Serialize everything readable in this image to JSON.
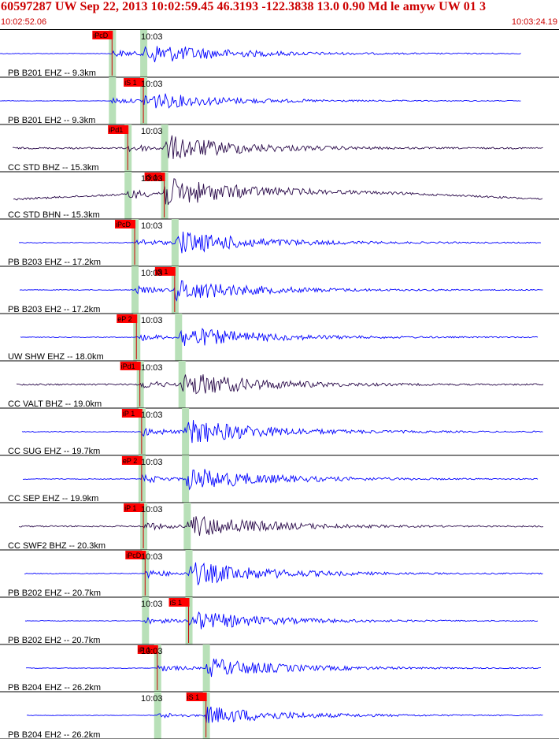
{
  "header": {
    "title": "60597287 UW Sep 22, 2013 10:02:59.45    46.3193 -122.3838 13.0 0.90 Md le amyw UW 01    3",
    "start_time": "10:02:52.06",
    "end_time": "10:03:24.19"
  },
  "colors": {
    "header_text": "#cc0000",
    "trace_blue": "#0000ff",
    "trace_dark": "#2a0a4a",
    "pick_box": "#ff0000",
    "pick_line": "#cc0000",
    "window_band": "#b8e0b8",
    "separator": "#000000"
  },
  "chart_data": {
    "type": "line",
    "title": "60597287 UW Sep 22, 2013 10:02:59.45 46.3193 -122.3838 13.0 0.90 Md le amyw UW 01 3",
    "xlabel": "",
    "ylabel": "",
    "x_unit": "time",
    "xlim": [
      "10:02:52.06",
      "10:03:24.19"
    ],
    "grid": false,
    "series": [
      {
        "name": "PB B201 EHZ -- 9.3km",
        "minute_label": "10:03",
        "color": "blue",
        "pick": "iPcD",
        "p_time": "10:02:58.5",
        "s_time": "10:03:00.3",
        "pick_at": "p",
        "amp": 0.55
      },
      {
        "name": "PB B201 EH2 -- 9.3km",
        "minute_label": "10:03",
        "color": "blue",
        "pick": "iS 1",
        "p_time": "10:02:58.5",
        "s_time": "10:03:00.3",
        "pick_at": "s",
        "amp": 0.45
      },
      {
        "name": "CC STD BHZ -- 15.3km",
        "minute_label": "10:03",
        "color": "dark",
        "pick": "iPd1",
        "p_time": "10:02:59.4",
        "s_time": "10:03:01.5",
        "pick_at": "p",
        "amp": 0.65
      },
      {
        "name": "CC STD BHN -- 15.3km",
        "minute_label": "10:03",
        "color": "dark",
        "pick": "iS 1",
        "p_time": "10:02:59.4",
        "s_time": "10:03:01.5",
        "pick_at": "s",
        "amp": 0.75
      },
      {
        "name": "PB B203 EHZ -- 17.2km",
        "minute_label": "10:03",
        "color": "blue",
        "pick": "iPcD",
        "p_time": "10:02:59.8",
        "s_time": "10:03:02.1",
        "pick_at": "p",
        "amp": 0.6
      },
      {
        "name": "PB B203 EH2 -- 17.2km",
        "minute_label": "10:03",
        "color": "blue",
        "pick": "iS 1",
        "p_time": "10:02:59.8",
        "s_time": "10:03:02.1",
        "pick_at": "s",
        "amp": 0.55
      },
      {
        "name": "UW SHW EHZ -- 18.0km",
        "minute_label": "10:03",
        "color": "blue",
        "pick": "eP 2",
        "p_time": "10:02:59.9",
        "s_time": "10:03:02.3",
        "pick_at": "p",
        "amp": 0.55
      },
      {
        "name": "CC VALT BHZ -- 19.0km",
        "minute_label": "10:03",
        "color": "dark",
        "pick": "iPd1",
        "p_time": "10:03:00.1",
        "s_time": "10:03:02.5",
        "pick_at": "p",
        "amp": 0.65
      },
      {
        "name": "CC SUG EHZ -- 19.7km",
        "minute_label": "10:03",
        "color": "blue",
        "pick": "iP 1",
        "p_time": "10:03:00.2",
        "s_time": "10:03:02.7",
        "pick_at": "p",
        "amp": 0.65
      },
      {
        "name": "CC SEP EHZ -- 19.9km",
        "minute_label": "10:03",
        "color": "blue",
        "pick": "eP 2",
        "p_time": "10:03:00.2",
        "s_time": "10:03:02.7",
        "pick_at": "p",
        "amp": 0.6
      },
      {
        "name": "CC SWF2 BHZ -- 20.3km",
        "minute_label": "10:03",
        "color": "dark",
        "pick": "iP 1",
        "p_time": "10:03:00.3",
        "s_time": "10:03:02.8",
        "pick_at": "p",
        "amp": 0.6
      },
      {
        "name": "PB B202 EHZ -- 20.7km",
        "minute_label": "10:03",
        "color": "blue",
        "pick": "iPcD",
        "p_time": "10:03:00.4",
        "s_time": "10:03:02.9",
        "pick_at": "p",
        "amp": 0.6
      },
      {
        "name": "PB B202 EH2 -- 20.7km",
        "minute_label": "10:03",
        "color": "blue",
        "pick": "iS 1",
        "p_time": "10:03:00.4",
        "s_time": "10:03:02.9",
        "pick_at": "s",
        "amp": 0.5
      },
      {
        "name": "PB B204 EHZ -- 26.2km",
        "minute_label": "10:03",
        "color": "blue",
        "pick": "iP 1",
        "p_time": "10:03:01.1",
        "s_time": "10:03:03.9",
        "pick_at": "p",
        "amp": 0.5
      },
      {
        "name": "PB B204 EH2 -- 26.2km",
        "minute_label": "10:03",
        "color": "blue",
        "pick": "iS 1",
        "p_time": "10:03:01.1",
        "s_time": "10:03:03.9",
        "pick_at": "s",
        "amp": 0.45
      }
    ]
  }
}
